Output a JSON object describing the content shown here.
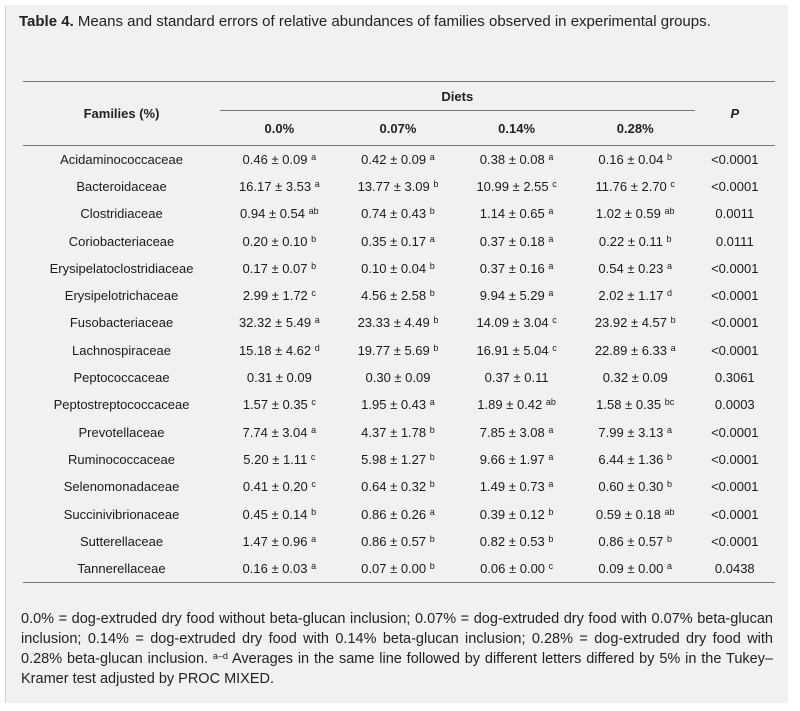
{
  "caption": {
    "label": "Table 4.",
    "text": " Means and standard errors of relative abundances of families observed in experimental groups."
  },
  "table": {
    "row_header": "Families (%)",
    "group_header": "Diets",
    "p_header": "P",
    "columns": [
      "0.0%",
      "0.07%",
      "0.14%",
      "0.28%"
    ],
    "rows": [
      {
        "family": "Acidaminococcaceae",
        "cells": [
          {
            "v": "0.46 ± 0.09",
            "s": "a"
          },
          {
            "v": "0.42 ± 0.09",
            "s": "a"
          },
          {
            "v": "0.38 ± 0.08",
            "s": "a"
          },
          {
            "v": "0.16 ± 0.04",
            "s": "b"
          }
        ],
        "p": "<0.0001"
      },
      {
        "family": "Bacteroidaceae",
        "cells": [
          {
            "v": "16.17 ± 3.53",
            "s": "a"
          },
          {
            "v": "13.77 ± 3.09",
            "s": "b"
          },
          {
            "v": "10.99 ± 2.55",
            "s": "c"
          },
          {
            "v": "11.76 ± 2.70",
            "s": "c"
          }
        ],
        "p": "<0.0001"
      },
      {
        "family": "Clostridiaceae",
        "cells": [
          {
            "v": "0.94 ± 0.54",
            "s": "ab"
          },
          {
            "v": "0.74 ± 0.43",
            "s": "b"
          },
          {
            "v": "1.14 ± 0.65",
            "s": "a"
          },
          {
            "v": "1.02 ± 0.59",
            "s": "ab"
          }
        ],
        "p": "0.0011"
      },
      {
        "family": "Coriobacteriaceae",
        "cells": [
          {
            "v": "0.20 ± 0.10",
            "s": "b"
          },
          {
            "v": "0.35 ± 0.17",
            "s": "a"
          },
          {
            "v": "0.37 ± 0.18",
            "s": "a"
          },
          {
            "v": "0.22 ± 0.11",
            "s": "b"
          }
        ],
        "p": "0.0111"
      },
      {
        "family": "Erysipelatoclostridiaceae",
        "cells": [
          {
            "v": "0.17 ± 0.07",
            "s": "b"
          },
          {
            "v": "0.10 ± 0.04",
            "s": "b"
          },
          {
            "v": "0.37 ± 0.16",
            "s": "a"
          },
          {
            "v": "0.54 ± 0.23",
            "s": "a"
          }
        ],
        "p": "<0.0001"
      },
      {
        "family": "Erysipelotrichaceae",
        "cells": [
          {
            "v": "2.99 ± 1.72",
            "s": "c"
          },
          {
            "v": "4.56 ± 2.58",
            "s": "b"
          },
          {
            "v": "9.94 ± 5.29",
            "s": "a"
          },
          {
            "v": "2.02 ± 1.17",
            "s": "d"
          }
        ],
        "p": "<0.0001"
      },
      {
        "family": "Fusobacteriaceae",
        "cells": [
          {
            "v": "32.32 ± 5.49",
            "s": "a"
          },
          {
            "v": "23.33 ± 4.49",
            "s": "b"
          },
          {
            "v": "14.09 ± 3.04",
            "s": "c"
          },
          {
            "v": "23.92 ± 4.57",
            "s": "b"
          }
        ],
        "p": "<0.0001"
      },
      {
        "family": "Lachnospiraceae",
        "cells": [
          {
            "v": "15.18 ± 4.62",
            "s": "d"
          },
          {
            "v": "19.77 ± 5.69",
            "s": "b"
          },
          {
            "v": "16.91 ± 5.04",
            "s": "c"
          },
          {
            "v": "22.89 ± 6.33",
            "s": "a"
          }
        ],
        "p": "<0.0001"
      },
      {
        "family": "Peptococcaceae",
        "cells": [
          {
            "v": "0.31 ± 0.09",
            "s": ""
          },
          {
            "v": "0.30 ± 0.09",
            "s": ""
          },
          {
            "v": "0.37 ± 0.11",
            "s": ""
          },
          {
            "v": "0.32 ± 0.09",
            "s": ""
          }
        ],
        "p": "0.3061"
      },
      {
        "family": "Peptostreptococcaceae",
        "cells": [
          {
            "v": "1.57 ± 0.35",
            "s": "c"
          },
          {
            "v": "1.95 ± 0.43",
            "s": "a"
          },
          {
            "v": "1.89 ± 0.42",
            "s": "ab"
          },
          {
            "v": "1.58 ± 0.35",
            "s": "bc"
          }
        ],
        "p": "0.0003"
      },
      {
        "family": "Prevotellaceae",
        "cells": [
          {
            "v": "7.74 ± 3.04",
            "s": "a"
          },
          {
            "v": "4.37 ± 1.78",
            "s": "b"
          },
          {
            "v": "7.85 ± 3.08",
            "s": "a"
          },
          {
            "v": "7.99 ± 3.13",
            "s": "a"
          }
        ],
        "p": "<0.0001"
      },
      {
        "family": "Ruminococcaceae",
        "cells": [
          {
            "v": "5.20 ± 1.11",
            "s": "c"
          },
          {
            "v": "5.98 ± 1.27",
            "s": "b"
          },
          {
            "v": "9.66 ± 1.97",
            "s": "a"
          },
          {
            "v": "6.44 ± 1.36",
            "s": "b"
          }
        ],
        "p": "<0.0001"
      },
      {
        "family": "Selenomonadaceae",
        "cells": [
          {
            "v": "0.41 ± 0.20",
            "s": "c"
          },
          {
            "v": "0.64 ± 0.32",
            "s": "b"
          },
          {
            "v": "1.49 ± 0.73",
            "s": "a"
          },
          {
            "v": "0.60 ± 0.30",
            "s": "b"
          }
        ],
        "p": "<0.0001"
      },
      {
        "family": "Succinivibrionaceae",
        "cells": [
          {
            "v": "0.45 ± 0.14",
            "s": "b"
          },
          {
            "v": "0.86 ± 0.26",
            "s": "a"
          },
          {
            "v": "0.39 ± 0.12",
            "s": "b"
          },
          {
            "v": "0.59 ± 0.18",
            "s": "ab"
          }
        ],
        "p": "<0.0001"
      },
      {
        "family": "Sutterellaceae",
        "cells": [
          {
            "v": "1.47 ± 0.96",
            "s": "a"
          },
          {
            "v": "0.86 ± 0.57",
            "s": "b"
          },
          {
            "v": "0.82 ± 0.53",
            "s": "b"
          },
          {
            "v": "0.86 ± 0.57",
            "s": "b"
          }
        ],
        "p": "<0.0001"
      },
      {
        "family": "Tannerellaceae",
        "cells": [
          {
            "v": "0.16 ± 0.03",
            "s": "a"
          },
          {
            "v": "0.07 ± 0.00",
            "s": "b"
          },
          {
            "v": "0.06 ± 0.00",
            "s": "c"
          },
          {
            "v": "0.09 ± 0.00",
            "s": "a"
          }
        ],
        "p": "0.0438"
      }
    ]
  },
  "footnote": {
    "line1": "0.0% = dog-extruded dry food without beta-glucan inclusion; 0.07% = dog-extruded dry food with 0.07% beta-glucan inclusion; 0.14% = dog-extruded dry food with 0.14% beta-glucan inclusion; 0.28% = dog-extruded dry food with 0.28% beta-glucan inclusion. ",
    "sup": "a–d",
    "line2": "Averages in the same line followed by different letters differed by 5% in the Tukey–Kramer test adjusted by PROC MIXED."
  }
}
